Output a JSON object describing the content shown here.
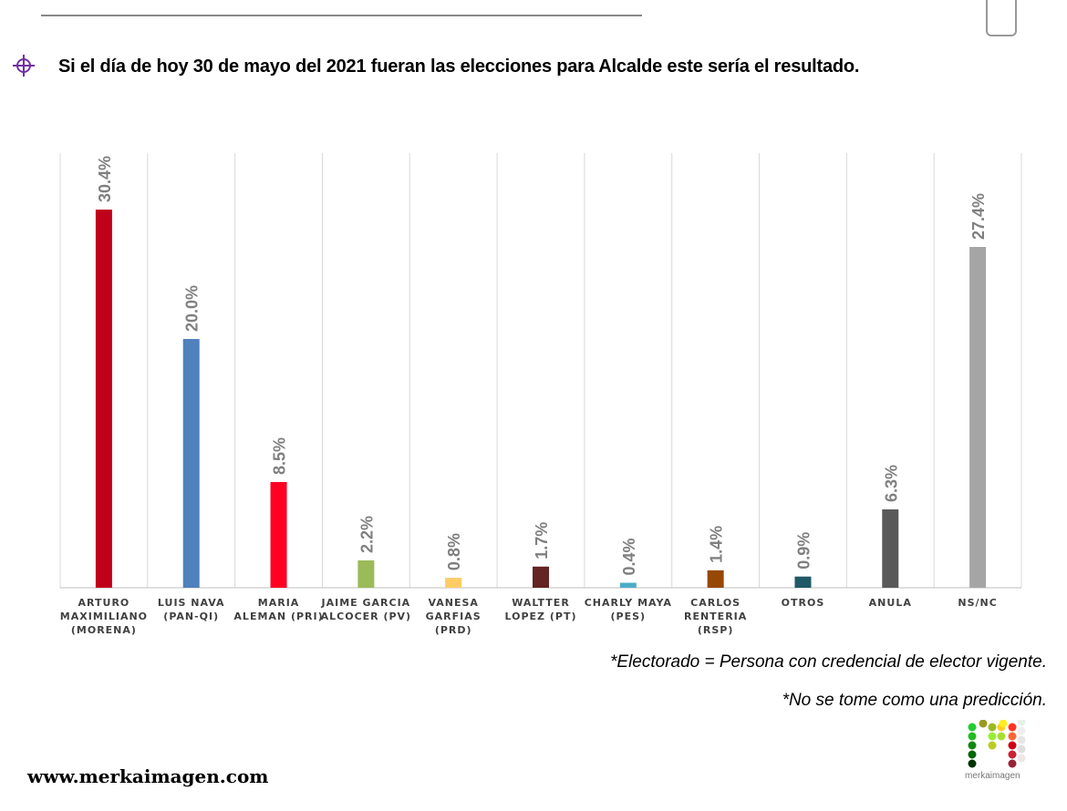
{
  "title": "Si el día de hoy 30 de mayo del 2021 fueran las elecciones para Alcalde este sería el resultado.",
  "notes": [
    "*Electorado = Persona con credencial de elector vigente.",
    "*No se tome como una predicción."
  ],
  "website": "www.merkaimagen.com",
  "logo_text": "merkaimagen",
  "chart_data": {
    "type": "bar",
    "categories": [
      [
        "ARTURO",
        "MAXIMILIANO",
        "(MORENA)"
      ],
      [
        "LUIS NAVA",
        "(PAN-QI)"
      ],
      [
        "MARIA",
        "ALEMAN (PRI)"
      ],
      [
        "JAIME GARCIA",
        "ALCOCER (PV)"
      ],
      [
        "VANESA",
        "GARFIAS",
        "(PRD)"
      ],
      [
        "WALTTER",
        "LOPEZ (PT)"
      ],
      [
        "CHARLY MAYA",
        "(PES)"
      ],
      [
        "CARLOS",
        "RENTERIA",
        "(RSP)"
      ],
      [
        "OTROS"
      ],
      [
        "ANULA"
      ],
      [
        "NS/NC"
      ]
    ],
    "values": [
      30.4,
      20.0,
      8.5,
      2.2,
      0.8,
      1.7,
      0.4,
      1.4,
      0.9,
      6.3,
      27.4
    ],
    "labels": [
      "30.4%",
      "20.0%",
      "8.5%",
      "2.2%",
      "0.8%",
      "1.7%",
      "0.4%",
      "1.4%",
      "0.9%",
      "6.3%",
      "27.4%"
    ],
    "colors": [
      "#c0001a",
      "#4f81bd",
      "#ff0022",
      "#9bbb59",
      "#ffcc66",
      "#632423",
      "#4bacc6",
      "#974806",
      "#215967",
      "#595959",
      "#a5a5a5"
    ],
    "ylim": [
      0,
      35
    ],
    "grid": "vertical"
  }
}
